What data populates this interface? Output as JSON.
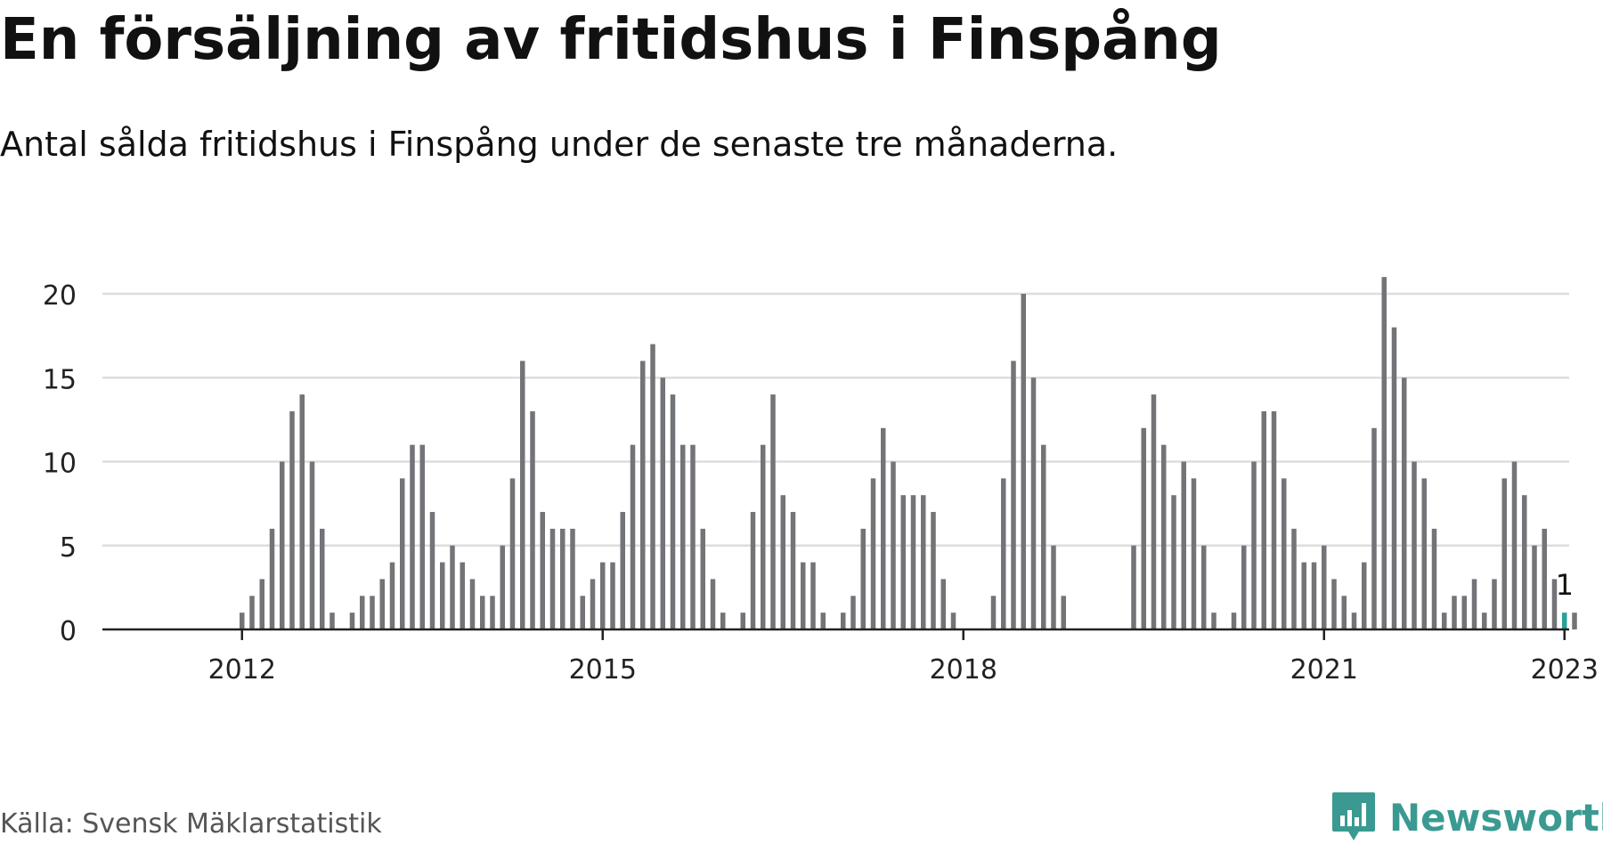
{
  "header": {
    "title": "En försäljning av fritidshus i Finspång",
    "subtitle": "Antal sålda fritidshus i Finspång under de senaste tre månaderna."
  },
  "footer": {
    "source": "Källa: Svensk Mäklarstatistik",
    "brand": "Newsworthy",
    "brand_icon": "newsworthy-logo-icon"
  },
  "colors": {
    "bar": "#737378",
    "highlight": "#2aa198",
    "grid": "#dddddd",
    "axis": "#222222",
    "brand": "#3a9a92"
  },
  "chart_data": {
    "type": "bar",
    "x_start": "2011-06",
    "frequency": "monthly",
    "values": [
      0,
      0,
      0,
      0,
      0,
      0,
      0,
      1,
      2,
      3,
      6,
      10,
      13,
      14,
      10,
      6,
      1,
      0,
      1,
      2,
      2,
      3,
      4,
      9,
      11,
      11,
      7,
      4,
      5,
      4,
      3,
      2,
      2,
      5,
      9,
      16,
      13,
      7,
      6,
      6,
      6,
      2,
      3,
      4,
      4,
      7,
      11,
      16,
      17,
      15,
      14,
      11,
      11,
      6,
      3,
      1,
      0,
      1,
      7,
      11,
      14,
      8,
      7,
      4,
      4,
      1,
      0,
      1,
      2,
      6,
      9,
      12,
      10,
      8,
      8,
      8,
      7,
      3,
      1,
      0,
      0,
      0,
      2,
      9,
      16,
      20,
      15,
      11,
      5,
      2,
      0,
      0,
      0,
      0,
      0,
      0,
      5,
      12,
      14,
      11,
      8,
      10,
      9,
      5,
      1,
      0,
      1,
      5,
      10,
      13,
      13,
      9,
      6,
      4,
      4,
      5,
      3,
      2,
      1,
      4,
      12,
      21,
      18,
      15,
      10,
      9,
      6,
      1,
      2,
      2,
      3,
      1,
      3,
      9,
      10,
      8,
      5,
      6,
      3,
      1,
      1
    ],
    "x_ticks": [
      "2012",
      "2015",
      "2018",
      "2021",
      "2023"
    ],
    "y_ticks": [
      0,
      5,
      10,
      15,
      20
    ],
    "ylim": [
      0,
      21
    ],
    "highlight": {
      "label": "1",
      "value": 1,
      "date": "2023-01"
    },
    "grid": true,
    "legend": "none"
  }
}
